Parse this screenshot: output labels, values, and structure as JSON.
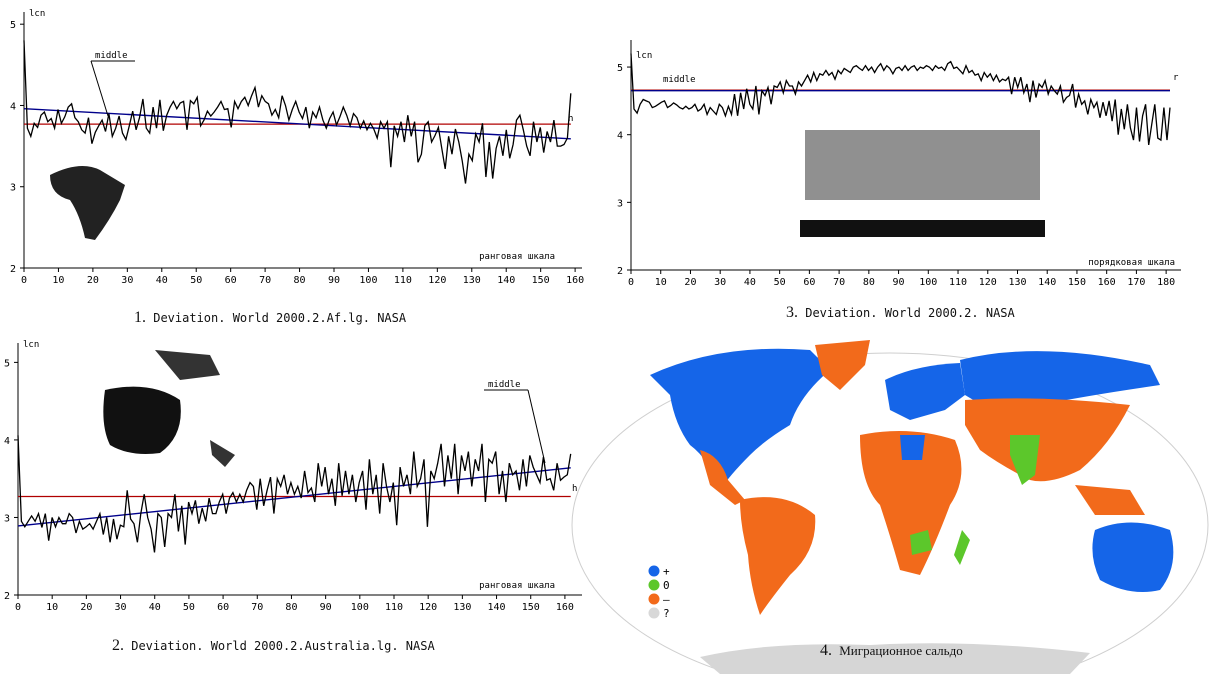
{
  "captions": {
    "c1": {
      "num": "1.",
      "text": "Deviation. World 2000.2.Af.lg. NASA"
    },
    "c2": {
      "num": "2.",
      "text": "Deviation. World 2000.2.Australia.lg. NASA"
    },
    "c3": {
      "num": "3.",
      "text": "Deviation. World 2000.2. NASA"
    },
    "c4": {
      "num": "4.",
      "text": "Миграционное сальдо"
    }
  },
  "map_legend": [
    {
      "symbol": "+",
      "color": "#1565e8"
    },
    {
      "symbol": "0",
      "color": "#5cc72b"
    },
    {
      "symbol": "–",
      "color": "#f26a1b"
    },
    {
      "symbol": "?",
      "color": "#d8d8d8"
    }
  ],
  "colors": {
    "series": "#000000",
    "middle": "#b00000",
    "trend": "#00008b",
    "map_plus": "#1565e8",
    "map_zero": "#5cc72b",
    "map_minus": "#f26a1b",
    "map_unknown": "#d8d8d8"
  },
  "chart_data": [
    {
      "type": "line",
      "ylabel": "lcn",
      "xlabel": "ранговая шкала",
      "xlim": [
        0,
        162
      ],
      "ylim": [
        2,
        5.15
      ],
      "xticks": [
        0,
        10,
        20,
        30,
        40,
        50,
        60,
        70,
        80,
        90,
        100,
        110,
        120,
        130,
        140,
        150,
        160
      ],
      "yticks": [
        2,
        3,
        4,
        5
      ],
      "annotations": [
        "middle",
        "h"
      ],
      "series": [
        {
          "values": [
            4.8,
            3.72,
            3.62,
            3.78,
            3.73,
            3.88,
            3.92,
            3.8,
            3.84,
            3.72,
            3.95,
            3.78,
            3.86,
            3.98,
            4.02,
            3.85,
            3.8,
            3.7,
            3.66,
            3.85,
            3.53,
            3.67,
            3.75,
            3.82,
            3.68,
            3.9,
            3.62,
            3.72,
            3.87,
            3.66,
            3.58,
            3.75,
            3.93,
            3.7,
            3.85,
            4.08,
            3.72,
            3.66,
            3.98,
            3.72,
            4.07,
            3.69,
            3.88,
            3.98,
            4.05,
            3.96,
            4.03,
            4.05,
            3.7,
            4.06,
            4.02,
            4.1,
            3.75,
            3.82,
            3.93,
            3.87,
            3.92,
            3.98,
            4.05,
            3.95,
            3.96,
            3.73,
            4.05,
            3.96,
            4.05,
            4.1,
            4.0,
            4.12,
            4.22,
            3.98,
            4.12,
            4.05,
            4.02,
            3.88,
            3.95,
            3.85,
            4.12,
            4.0,
            3.82,
            3.95,
            4.05,
            3.92,
            3.84,
            3.98,
            3.72,
            3.92,
            3.85,
            3.98,
            3.82,
            3.72,
            3.84,
            3.92,
            3.76,
            3.86,
            3.98,
            3.88,
            3.75,
            3.9,
            3.85,
            3.72,
            3.81,
            3.7,
            3.78,
            3.71,
            3.6,
            3.8,
            3.72,
            3.8,
            3.24,
            3.75,
            3.62,
            3.8,
            3.55,
            3.88,
            3.62,
            3.8,
            3.3,
            3.4,
            3.75,
            3.8,
            3.55,
            3.63,
            3.73,
            3.47,
            3.22,
            3.62,
            3.4,
            3.71,
            3.55,
            3.32,
            3.04,
            3.4,
            3.32,
            3.65,
            3.55,
            3.78,
            3.12,
            3.55,
            3.1,
            3.47,
            3.62,
            3.38,
            3.7,
            3.35,
            3.52,
            3.82,
            3.88,
            3.7,
            3.5,
            3.38,
            3.8,
            3.55,
            3.73,
            3.42,
            3.68,
            3.55,
            3.82,
            3.5,
            3.5,
            3.52,
            3.6,
            4.15
          ]
        },
        {
          "name": "middle",
          "values": [
            3.77,
            3.77
          ]
        },
        {
          "values": [
            3.96,
            3.59
          ]
        }
      ]
    },
    {
      "type": "line",
      "ylabel": "lcn",
      "xlabel": "ранговая шкала",
      "xlim": [
        0,
        165
      ],
      "ylim": [
        2,
        5.25
      ],
      "xticks": [
        0,
        10,
        20,
        30,
        40,
        50,
        60,
        70,
        80,
        90,
        100,
        110,
        120,
        130,
        140,
        150,
        160
      ],
      "yticks": [
        2,
        3,
        4,
        5
      ],
      "annotations": [
        "middle",
        "h"
      ],
      "series": [
        {
          "values": [
            4.06,
            2.95,
            2.88,
            2.95,
            3.02,
            2.95,
            3.05,
            2.87,
            3.05,
            2.7,
            3.0,
            2.88,
            3.0,
            2.92,
            2.92,
            3.05,
            3.0,
            2.8,
            2.95,
            2.85,
            2.88,
            2.92,
            2.85,
            2.95,
            3.05,
            2.78,
            3.0,
            2.68,
            2.98,
            2.72,
            2.9,
            2.88,
            3.35,
            2.98,
            2.92,
            2.68,
            3.05,
            3.3,
            3.0,
            2.85,
            2.55,
            3.05,
            3.0,
            2.62,
            3.05,
            3.0,
            3.3,
            2.82,
            3.15,
            2.65,
            3.2,
            3.05,
            3.22,
            2.92,
            3.12,
            2.95,
            3.25,
            3.05,
            3.05,
            3.2,
            3.3,
            3.05,
            3.25,
            3.32,
            3.2,
            3.3,
            3.2,
            3.35,
            3.45,
            3.4,
            3.1,
            3.5,
            3.15,
            3.35,
            3.52,
            3.05,
            3.5,
            3.4,
            3.55,
            3.3,
            3.45,
            3.3,
            3.4,
            3.25,
            3.6,
            3.32,
            3.38,
            3.2,
            3.7,
            3.4,
            3.65,
            3.3,
            3.5,
            3.15,
            3.7,
            3.28,
            3.6,
            3.3,
            3.55,
            3.2,
            3.45,
            3.6,
            3.1,
            3.75,
            3.3,
            3.55,
            3.05,
            3.7,
            3.4,
            3.2,
            3.45,
            2.9,
            3.65,
            3.4,
            3.55,
            3.3,
            3.85,
            3.4,
            3.5,
            3.75,
            2.88,
            3.6,
            3.5,
            3.7,
            3.95,
            3.4,
            3.8,
            3.5,
            3.95,
            3.3,
            3.8,
            3.6,
            3.85,
            3.4,
            3.75,
            3.6,
            3.95,
            3.2,
            3.75,
            3.7,
            3.85,
            3.3,
            3.6,
            3.2,
            3.7,
            3.55,
            3.6,
            3.35,
            3.75,
            3.4,
            3.8,
            3.65,
            3.55,
            3.45,
            3.78,
            3.48,
            3.5,
            3.35,
            3.7,
            3.48,
            3.52,
            3.55,
            3.82
          ]
        },
        {
          "name": "middle",
          "values": [
            3.27,
            3.27
          ]
        },
        {
          "values": [
            2.89,
            3.64
          ]
        }
      ]
    },
    {
      "type": "line",
      "ylabel": "lcn",
      "xlabel": "порядковая шкала",
      "xlim": [
        0,
        185
      ],
      "ylim": [
        2,
        5.4
      ],
      "xticks": [
        0,
        10,
        20,
        30,
        40,
        50,
        60,
        70,
        80,
        90,
        100,
        110,
        120,
        130,
        140,
        150,
        160,
        170,
        180
      ],
      "yticks": [
        2,
        3,
        4,
        5
      ],
      "annotations": [
        "middle",
        "r"
      ],
      "series": [
        {
          "values": [
            5.2,
            4.38,
            4.32,
            4.45,
            4.52,
            4.5,
            4.48,
            4.4,
            4.42,
            4.45,
            4.48,
            4.5,
            4.4,
            4.43,
            4.47,
            4.44,
            4.4,
            4.38,
            4.42,
            4.38,
            4.4,
            4.45,
            4.35,
            4.38,
            4.45,
            4.3,
            4.4,
            4.35,
            4.3,
            4.45,
            4.4,
            4.28,
            4.42,
            4.3,
            4.6,
            4.28,
            4.62,
            4.38,
            4.68,
            4.45,
            4.38,
            4.72,
            4.3,
            4.65,
            4.58,
            4.7,
            4.45,
            4.72,
            4.7,
            4.78,
            4.62,
            4.8,
            4.72,
            4.72,
            4.6,
            4.78,
            4.72,
            4.8,
            4.88,
            4.78,
            4.92,
            4.8,
            4.9,
            4.88,
            4.95,
            4.88,
            4.92,
            4.82,
            4.95,
            4.9,
            4.98,
            4.95,
            4.92,
            5.0,
            5.02,
            4.98,
            4.95,
            5.02,
            4.95,
            5.0,
            4.92,
            5.0,
            5.05,
            4.95,
            5.02,
            4.98,
            4.9,
            4.98,
            5.0,
            4.95,
            5.02,
            4.95,
            5.0,
            5.02,
            4.95,
            5.0,
            4.98,
            5.02,
            5.0,
            4.95,
            5.02,
            4.98,
            5.0,
            4.95,
            5.05,
            5.08,
            4.98,
            5.0,
            4.95,
            4.9,
            5.02,
            4.92,
            4.95,
            4.88,
            4.9,
            4.8,
            4.92,
            4.85,
            4.9,
            4.8,
            4.88,
            4.78,
            4.82,
            4.8,
            4.85,
            4.6,
            4.85,
            4.7,
            4.85,
            4.62,
            4.75,
            4.48,
            4.8,
            4.55,
            4.75,
            4.7,
            4.8,
            4.6,
            4.72,
            4.65,
            4.6,
            4.72,
            4.48,
            4.55,
            4.58,
            4.75,
            4.4,
            4.6,
            4.45,
            4.5,
            4.3,
            4.52,
            4.4,
            4.48,
            4.25,
            4.48,
            4.28,
            4.5,
            4.2,
            4.52,
            4.0,
            4.38,
            4.08,
            4.45,
            4.1,
            3.92,
            4.4,
            3.9,
            4.28,
            4.45,
            3.85,
            4.15,
            4.45,
            3.95,
            3.92,
            4.4,
            3.92,
            4.4
          ]
        },
        {
          "name": "middle",
          "values": [
            4.66,
            4.66
          ]
        },
        {
          "values": [
            4.65,
            4.65
          ]
        }
      ]
    }
  ]
}
